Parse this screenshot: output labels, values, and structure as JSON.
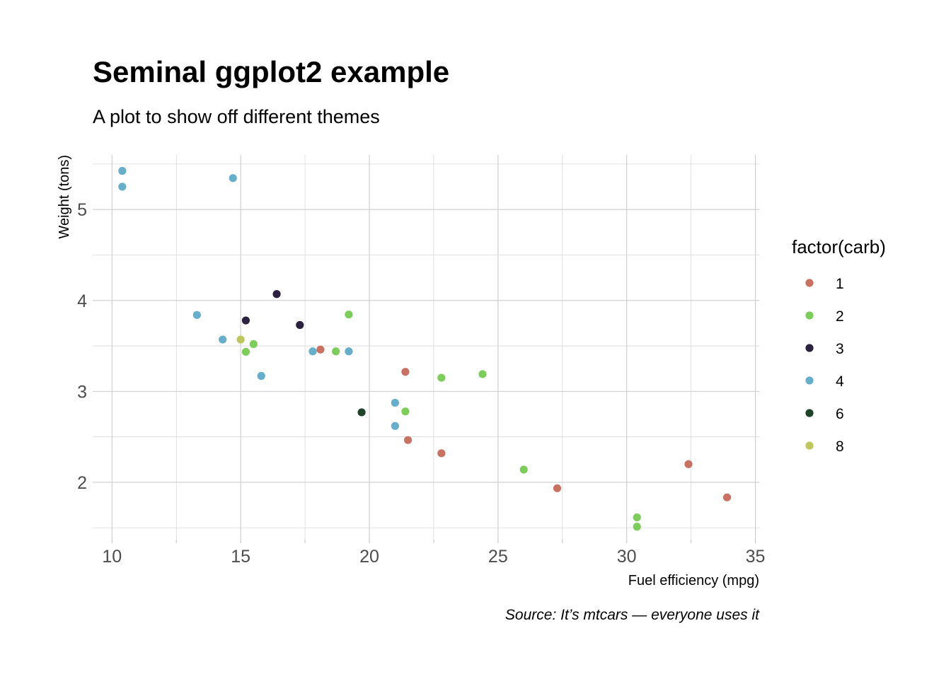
{
  "chart_data": {
    "type": "scatter",
    "title": "Seminal ggplot2 example",
    "subtitle": "A plot to show off different themes",
    "xlabel": "Fuel efficiency (mpg)",
    "ylabel": "Weight (tons)",
    "caption": "Source: It’s mtcars — everyone uses it",
    "xlim": [
      9.25,
      35.15
    ],
    "ylim": [
      1.37,
      5.6
    ],
    "x_ticks": [
      10,
      15,
      20,
      25,
      30,
      35
    ],
    "y_ticks": [
      2,
      3,
      4,
      5
    ],
    "grid": true,
    "legend": {
      "title": "factor(carb)",
      "position": "right",
      "entries": [
        "1",
        "2",
        "3",
        "4",
        "6",
        "8"
      ]
    },
    "colors": {
      "1": "#c87264",
      "2": "#7dcd5d",
      "3": "#2c2140",
      "4": "#67aecb",
      "6": "#1f4329",
      "8": "#bec65e"
    },
    "series": [
      {
        "name": "1",
        "points": [
          {
            "x": 22.8,
            "y": 2.32
          },
          {
            "x": 21.4,
            "y": 3.215
          },
          {
            "x": 18.1,
            "y": 3.46
          },
          {
            "x": 32.4,
            "y": 2.2
          },
          {
            "x": 33.9,
            "y": 1.835
          },
          {
            "x": 21.5,
            "y": 2.465
          },
          {
            "x": 27.3,
            "y": 1.935
          }
        ]
      },
      {
        "name": "2",
        "points": [
          {
            "x": 18.7,
            "y": 3.44
          },
          {
            "x": 24.4,
            "y": 3.19
          },
          {
            "x": 22.8,
            "y": 3.15
          },
          {
            "x": 30.4,
            "y": 1.615
          },
          {
            "x": 15.5,
            "y": 3.52
          },
          {
            "x": 15.2,
            "y": 3.435
          },
          {
            "x": 19.2,
            "y": 3.845
          },
          {
            "x": 26.0,
            "y": 2.14
          },
          {
            "x": 30.4,
            "y": 1.513
          },
          {
            "x": 21.4,
            "y": 2.78
          }
        ]
      },
      {
        "name": "3",
        "points": [
          {
            "x": 16.4,
            "y": 4.07
          },
          {
            "x": 17.3,
            "y": 3.73
          },
          {
            "x": 15.2,
            "y": 3.78
          }
        ]
      },
      {
        "name": "4",
        "points": [
          {
            "x": 21.0,
            "y": 2.62
          },
          {
            "x": 21.0,
            "y": 2.875
          },
          {
            "x": 14.3,
            "y": 3.57
          },
          {
            "x": 19.2,
            "y": 3.44
          },
          {
            "x": 17.8,
            "y": 3.44
          },
          {
            "x": 10.4,
            "y": 5.25
          },
          {
            "x": 10.4,
            "y": 5.424
          },
          {
            "x": 14.7,
            "y": 5.345
          },
          {
            "x": 13.3,
            "y": 3.84
          },
          {
            "x": 15.8,
            "y": 3.17
          }
        ]
      },
      {
        "name": "6",
        "points": [
          {
            "x": 19.7,
            "y": 2.77
          }
        ]
      },
      {
        "name": "8",
        "points": [
          {
            "x": 15.0,
            "y": 3.57
          }
        ]
      }
    ]
  }
}
